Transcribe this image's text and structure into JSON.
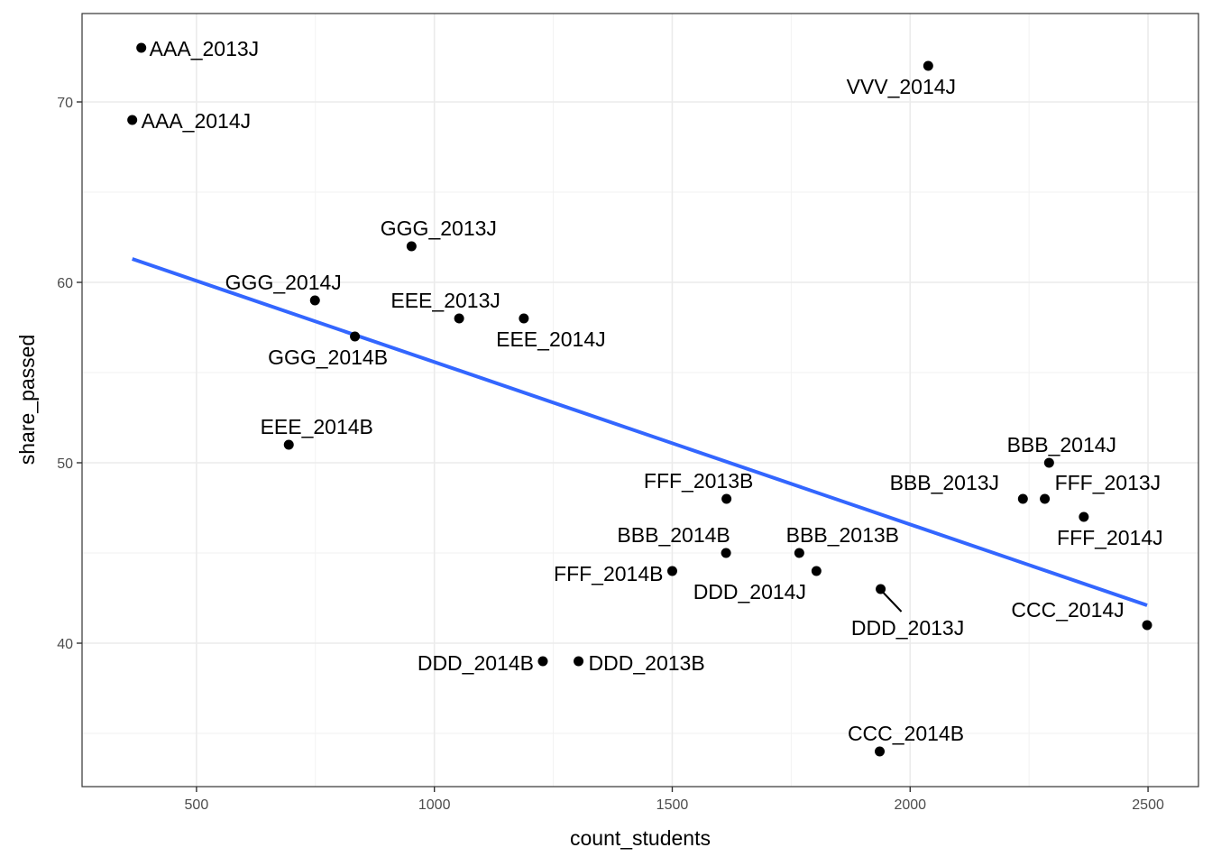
{
  "chart_data": {
    "type": "scatter",
    "title": "",
    "xlabel": "count_students",
    "ylabel": "share_passed",
    "xlim": [
      259.5,
      2606
    ],
    "ylim": [
      32.05,
      74.9
    ],
    "x_ticks": [
      500,
      1000,
      1500,
      2000,
      2500
    ],
    "x_tick_labels": [
      "500",
      "1000",
      "1500",
      "2000",
      "2500"
    ],
    "y_ticks": [
      40,
      50,
      60,
      70
    ],
    "y_tick_labels": [
      "40",
      "50",
      "60",
      "70"
    ],
    "grid": true,
    "legend": "none",
    "point_color": "#000000",
    "trend_color": "#3366FF",
    "points": [
      {
        "label": "AAA_2013J",
        "x": 384,
        "y": 73
      },
      {
        "label": "AAA_2014J",
        "x": 365,
        "y": 69
      },
      {
        "label": "VVV_2014J",
        "x": 2038,
        "y": 72
      },
      {
        "label": "GGG_2013J",
        "x": 952,
        "y": 62
      },
      {
        "label": "GGG_2014J",
        "x": 749,
        "y": 59
      },
      {
        "label": "GGG_2014B",
        "x": 833,
        "y": 57
      },
      {
        "label": "EEE_2013J",
        "x": 1052,
        "y": 58
      },
      {
        "label": "EEE_2014J",
        "x": 1188,
        "y": 58
      },
      {
        "label": "EEE_2014B",
        "x": 694,
        "y": 51
      },
      {
        "label": "FFF_2013B",
        "x": 1614,
        "y": 48
      },
      {
        "label": "BBB_2014B",
        "x": 1613,
        "y": 45
      },
      {
        "label": "BBB_2013B",
        "x": 1767,
        "y": 45
      },
      {
        "label": "FFF_2014B",
        "x": 1500,
        "y": 44
      },
      {
        "label": "DDD_2014J",
        "x": 1803,
        "y": 44
      },
      {
        "label": "DDD_2013J",
        "x": 1938,
        "y": 43
      },
      {
        "label": "BBB_2014J",
        "x": 2292,
        "y": 50
      },
      {
        "label": "BBB_2013J",
        "x": 2237,
        "y": 48
      },
      {
        "label": "FFF_2013J",
        "x": 2283,
        "y": 48
      },
      {
        "label": "FFF_2014J",
        "x": 2365,
        "y": 47
      },
      {
        "label": "CCC_2014J",
        "x": 2498,
        "y": 41
      },
      {
        "label": "DDD_2014B",
        "x": 1228,
        "y": 39
      },
      {
        "label": "DDD_2013B",
        "x": 1303,
        "y": 39
      },
      {
        "label": "CCC_2014B",
        "x": 1936,
        "y": 34
      }
    ],
    "trend_line": {
      "method": "linear",
      "x": [
        365,
        2498
      ],
      "y": [
        61.3,
        42.1
      ]
    }
  }
}
